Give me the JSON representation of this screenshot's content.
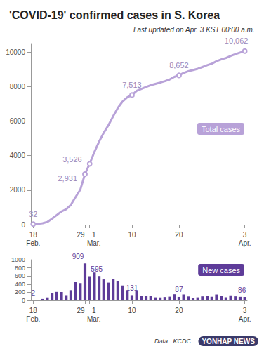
{
  "chart_data": [
    {
      "type": "line",
      "title": "'COVID-19' confirmed cases in S. Korea",
      "subtitle": "Last updated on Apr. 3 KST 00:00 a.m.",
      "categories": [
        "18\nFeb.",
        null,
        null,
        null,
        null,
        null,
        null,
        null,
        null,
        null,
        null,
        "29",
        "1\nMar.",
        null,
        null,
        null,
        null,
        null,
        null,
        null,
        null,
        "10",
        null,
        null,
        null,
        null,
        null,
        null,
        null,
        null,
        null,
        "20",
        null,
        null,
        null,
        null,
        null,
        null,
        null,
        null,
        null,
        null,
        null,
        null,
        null,
        "3\nApr."
      ],
      "series": [
        {
          "name": "Total cases",
          "color": "#b8a2d8",
          "values": [
            32,
            46,
            82,
            156,
            346,
            556,
            763,
            893,
            1146,
            1595,
            2022,
            2931,
            3526,
            4212,
            4812,
            5328,
            5766,
            6284,
            6767,
            7134,
            7382,
            7513,
            7755,
            7869,
            7979,
            8086,
            8162,
            8236,
            8320,
            8413,
            8565,
            8652,
            8799,
            8897,
            8961,
            9037,
            9137,
            9241,
            9332,
            9478,
            9583,
            9661,
            9786,
            9887,
            9976,
            10062
          ],
          "value_labels": [
            "32",
            null,
            null,
            null,
            null,
            null,
            null,
            null,
            null,
            null,
            null,
            "2,931",
            "3,526",
            null,
            null,
            null,
            null,
            null,
            null,
            null,
            null,
            "7,513",
            null,
            null,
            null,
            null,
            null,
            null,
            null,
            null,
            null,
            "8,652",
            null,
            null,
            null,
            null,
            null,
            null,
            null,
            null,
            null,
            null,
            null,
            null,
            null,
            "10,062"
          ]
        }
      ],
      "ylim": [
        0,
        10500
      ],
      "yticks": [
        0,
        2000,
        4000,
        6000,
        8000,
        10000
      ],
      "grid": false,
      "data_labels": true
    },
    {
      "type": "bar",
      "categories": [
        "18\nFeb.",
        null,
        null,
        null,
        null,
        null,
        null,
        null,
        null,
        null,
        null,
        "29",
        "1\nMar.",
        null,
        null,
        null,
        null,
        null,
        null,
        null,
        null,
        "10",
        null,
        null,
        null,
        null,
        null,
        null,
        null,
        null,
        null,
        "20",
        null,
        null,
        null,
        null,
        null,
        null,
        null,
        null,
        null,
        null,
        null,
        null,
        null,
        "3\nApr."
      ],
      "series": [
        {
          "name": "New cases",
          "color": "#5e3c99",
          "values": [
            2,
            14,
            36,
            74,
            190,
            210,
            207,
            130,
            253,
            449,
            427,
            909,
            595,
            686,
            600,
            516,
            438,
            518,
            483,
            367,
            248,
            131,
            242,
            114,
            110,
            107,
            76,
            74,
            84,
            93,
            152,
            87,
            147,
            98,
            64,
            76,
            100,
            104,
            91,
            146,
            105,
            78,
            125,
            101,
            89,
            86
          ],
          "value_labels": [
            "2",
            null,
            null,
            null,
            null,
            null,
            null,
            null,
            null,
            null,
            null,
            "909",
            "595",
            null,
            null,
            null,
            null,
            null,
            null,
            null,
            null,
            "131",
            null,
            null,
            null,
            null,
            null,
            null,
            null,
            null,
            null,
            "87",
            null,
            null,
            null,
            null,
            null,
            null,
            null,
            null,
            null,
            null,
            null,
            null,
            null,
            "86"
          ]
        }
      ],
      "ylim": [
        0,
        1000
      ],
      "yticks": [
        0,
        200,
        400,
        600,
        800,
        1000
      ],
      "grid": false,
      "data_labels": true
    }
  ],
  "source": "Data : KCDC",
  "credit": "YONHAP NEWS"
}
